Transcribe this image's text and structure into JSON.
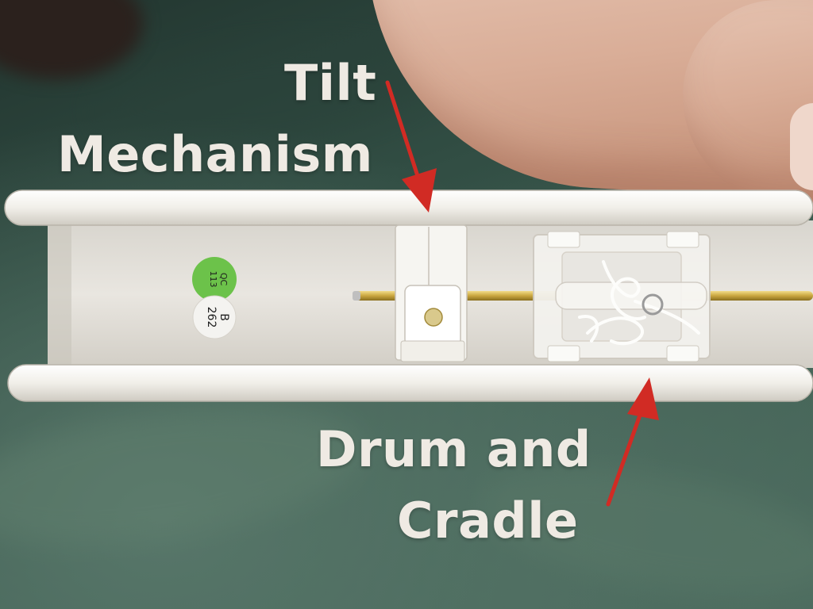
{
  "annotations": {
    "tilt": {
      "line1": "Tilt",
      "line2": "Mechanism"
    },
    "drum": {
      "line1": "Drum and",
      "line2": "Cradle"
    }
  },
  "stickers": {
    "green": {
      "line1": "QC",
      "line2": "113"
    },
    "white": {
      "line1": "B",
      "line2": "262"
    }
  },
  "colors": {
    "fabric": "#3f5e52",
    "rail": "#f1efe9",
    "arrow": "#d12b24",
    "label": "#efeae3",
    "sticker_green": "#6cc24a"
  }
}
